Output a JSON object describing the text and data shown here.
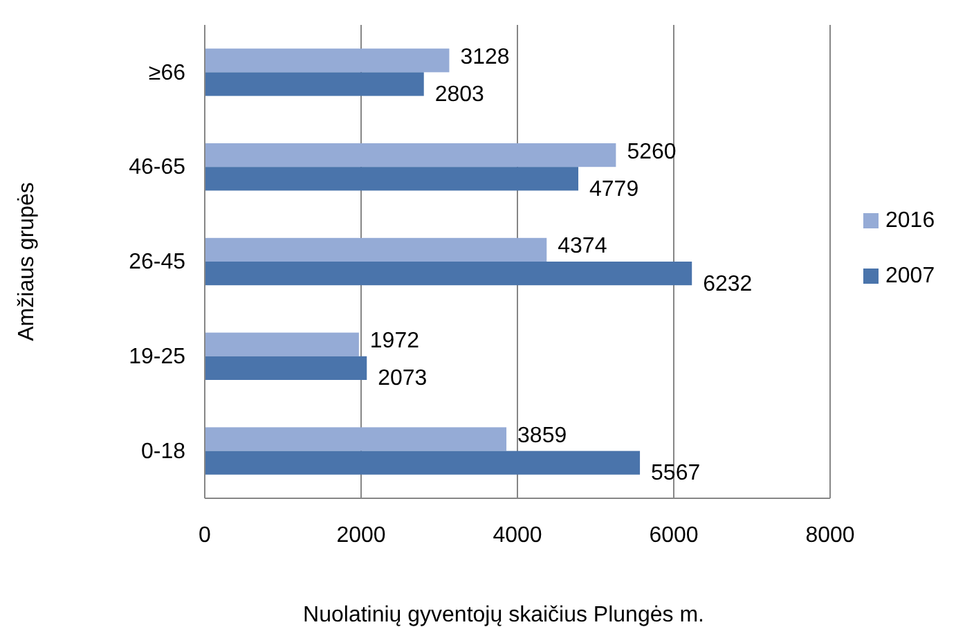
{
  "chart_data": {
    "type": "bar",
    "orientation": "horizontal",
    "xlabel": "Nuolatinių gyventojų skaičius Plungės m.",
    "ylabel": "Amžiaus grupės",
    "categories": [
      "≥66",
      "46-65",
      "26-45",
      "19-25",
      "0-18"
    ],
    "series": [
      {
        "name": "2016",
        "color": "#95abd6",
        "values": [
          3128,
          5260,
          4374,
          1972,
          3859
        ]
      },
      {
        "name": "2007",
        "color": "#4a74ab",
        "values": [
          2803,
          4779,
          6232,
          2073,
          5567
        ]
      }
    ],
    "xlim": [
      0,
      8000
    ],
    "xticks": [
      0,
      2000,
      4000,
      6000,
      8000
    ],
    "grid": "x",
    "legend": "right",
    "data_labels": true
  }
}
